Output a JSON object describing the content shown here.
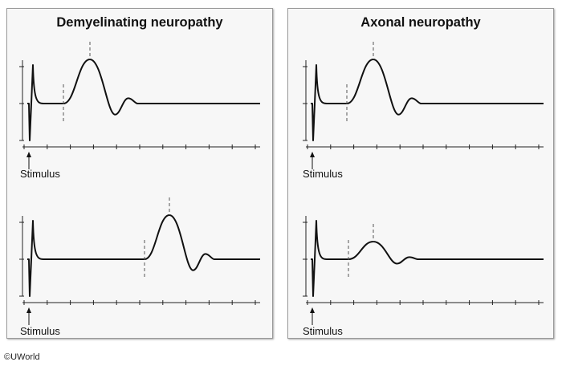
{
  "panels": [
    {
      "title": "Demyelinating neuropathy",
      "traces": [
        {
          "stimulus_label": "Stimulus",
          "onset": 79,
          "peak": 112,
          "amplitude": 55
        },
        {
          "stimulus_label": "Stimulus",
          "onset": 180,
          "peak": 211,
          "amplitude": 55
        }
      ]
    },
    {
      "title": "Axonal neuropathy",
      "traces": [
        {
          "stimulus_label": "Stimulus",
          "onset": 432,
          "peak": 465,
          "amplitude": 55
        },
        {
          "stimulus_label": "Stimulus",
          "onset": 434,
          "peak": 465,
          "amplitude": 22
        }
      ]
    }
  ],
  "copyright": "©UWorld"
}
